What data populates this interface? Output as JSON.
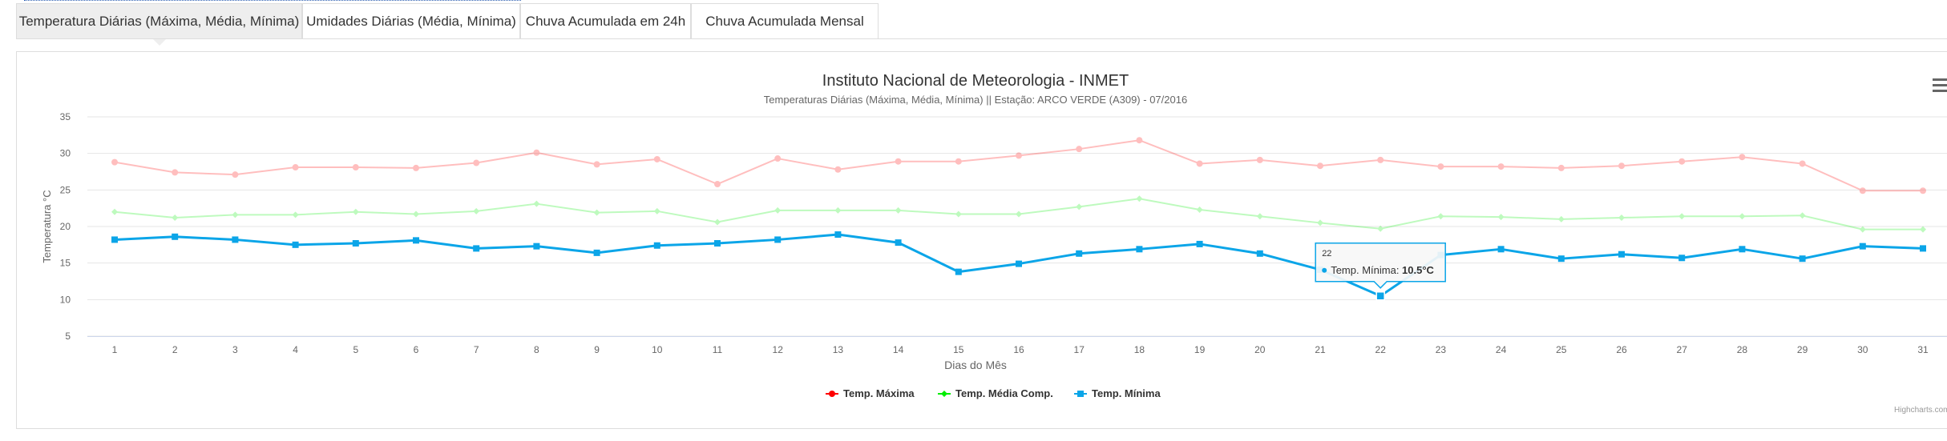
{
  "tabs": [
    {
      "label": "Temperatura Diárias (Máxima, Média, Mínima)",
      "active": true
    },
    {
      "label": "Umidades Diárias (Média, Mínima)",
      "active": false
    },
    {
      "label": "Chuva Acumulada em 24h",
      "active": false
    },
    {
      "label": "Chuva Acumulada Mensal",
      "active": false
    }
  ],
  "chart_data": {
    "type": "line",
    "title": "Instituto Nacional de Meteorologia - INMET",
    "subtitle": "Temperaturas Diárias (Máxima, Média, Mínima) || Estação: ARCO VERDE (A309) - 07/2016",
    "xlabel": "Dias do Mês",
    "ylabel": "Temperatura °C",
    "ylim": [
      5,
      35
    ],
    "yticks": [
      5,
      10,
      15,
      20,
      25,
      30,
      35
    ],
    "categories": [
      "1",
      "2",
      "3",
      "4",
      "5",
      "6",
      "7",
      "8",
      "9",
      "10",
      "11",
      "12",
      "13",
      "14",
      "15",
      "16",
      "17",
      "18",
      "19",
      "20",
      "21",
      "22",
      "23",
      "24",
      "25",
      "26",
      "27",
      "28",
      "29",
      "30",
      "31"
    ],
    "grid": true,
    "legend_position": "bottom-center",
    "series": [
      {
        "name": "Temp. Máxima",
        "color": "#ff0000",
        "marker": "circle",
        "values": [
          28.8,
          27.4,
          27.1,
          28.1,
          28.1,
          28.0,
          28.7,
          30.1,
          28.5,
          29.2,
          25.8,
          29.3,
          27.8,
          28.9,
          28.9,
          29.7,
          30.6,
          31.8,
          28.6,
          29.1,
          28.3,
          29.1,
          28.2,
          28.2,
          28.0,
          28.3,
          28.9,
          29.5,
          28.6,
          24.9,
          24.9
        ]
      },
      {
        "name": "Temp. Média Comp.",
        "color": "#00ee00",
        "marker": "diamond",
        "values": [
          22.0,
          21.2,
          21.6,
          21.6,
          22.0,
          21.7,
          22.1,
          23.1,
          21.9,
          22.1,
          20.6,
          22.2,
          22.2,
          22.2,
          21.7,
          21.7,
          22.7,
          23.8,
          22.3,
          21.4,
          20.5,
          19.7,
          21.4,
          21.3,
          21.0,
          21.2,
          21.4,
          21.4,
          21.5,
          19.6,
          19.6
        ]
      },
      {
        "name": "Temp. Mínima",
        "color": "#0ba5e8",
        "marker": "square",
        "values": [
          18.2,
          18.6,
          18.2,
          17.5,
          17.7,
          18.1,
          17.0,
          17.3,
          16.4,
          17.4,
          17.7,
          18.2,
          18.9,
          17.8,
          13.8,
          14.9,
          16.3,
          16.9,
          17.6,
          16.3,
          14.1,
          10.5,
          16.1,
          16.9,
          15.6,
          16.2,
          15.7,
          16.9,
          15.6,
          17.3,
          17.0
        ]
      }
    ],
    "tooltip": {
      "category": "22",
      "series": "Temp. Mínima",
      "label": "Temp. Mínima: ",
      "value": "10.5°C"
    },
    "credits": "Highcharts.com"
  }
}
